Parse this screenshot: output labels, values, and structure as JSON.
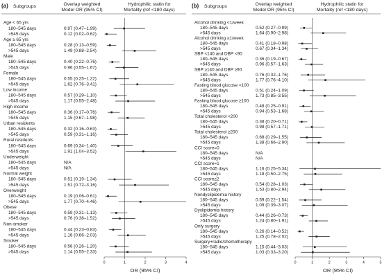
{
  "chart_data": [
    {
      "type": "forest",
      "panel": "(a)",
      "headers": {
        "subgroups": "Subgroups",
        "model": [
          "Overlap weighted",
          "Model OR (95% CI)"
        ],
        "plot": [
          "Hydrophilic statin for",
          "Mortality (ref <180 days)"
        ]
      },
      "xlabel": "OR (95% CI)",
      "xlim": [
        0,
        4
      ],
      "xticks": [
        0,
        1,
        2,
        3,
        4
      ],
      "ref_line": 1,
      "color": "#222222",
      "groups": [
        {
          "name": "Age < 65 yrs",
          "rows": [
            {
              "label": "180–545 days",
              "text": "0.97 (0.47–1.99)",
              "or": 0.97,
              "lo": 0.47,
              "hi": 1.99
            },
            {
              "label": ">545 days",
              "text": "0.12 (0.02–0.62)",
              "or": 0.12,
              "lo": 0.02,
              "hi": 0.62
            }
          ]
        },
        {
          "name": "Age ≥ 65 yrs",
          "rows": [
            {
              "label": "180–545 days",
              "text": "0.28 (0.13–0.59)",
              "or": 0.28,
              "lo": 0.13,
              "hi": 0.59
            },
            {
              "label": ">545 days",
              "text": "1.49 (0.88–2.54)",
              "or": 1.49,
              "lo": 0.88,
              "hi": 2.54
            }
          ]
        },
        {
          "name": "Male",
          "rows": [
            {
              "label": "180–545 days",
              "text": "0.40 (0.22–0.76)",
              "or": 0.4,
              "lo": 0.22,
              "hi": 0.76
            },
            {
              "label": ">545 days",
              "text": "0.96 (0.55–1.67)",
              "or": 0.96,
              "lo": 0.55,
              "hi": 1.67
            }
          ]
        },
        {
          "name": "Female",
          "rows": [
            {
              "label": "180–545 days",
              "text": "0.55 (0.25–1.22)",
              "or": 0.55,
              "lo": 0.25,
              "hi": 1.22
            },
            {
              "label": ">545 days",
              "text": "1.62 (0.76–3.41)",
              "or": 1.62,
              "lo": 0.76,
              "hi": 3.41
            }
          ]
        },
        {
          "name": "Low income",
          "rows": [
            {
              "label": "180–545 days",
              "text": "0.57 (0.29–1.10)",
              "or": 0.57,
              "lo": 0.29,
              "hi": 1.1
            },
            {
              "label": ">545 days",
              "text": "1.17 (0.55–2.48)",
              "or": 1.17,
              "lo": 0.55,
              "hi": 2.48
            }
          ]
        },
        {
          "name": "High income",
          "rows": [
            {
              "label": "180–545 days",
              "text": "0.36 (0.17–0.76)",
              "or": 0.36,
              "lo": 0.17,
              "hi": 0.76
            },
            {
              "label": ">545 days",
              "text": "1.15 (0.67–1.98)",
              "or": 1.15,
              "lo": 0.67,
              "hi": 1.98
            }
          ]
        },
        {
          "name": "Urban residents",
          "rows": [
            {
              "label": "180–545 days",
              "text": "0.32 (0.16–0.63)",
              "or": 0.32,
              "lo": 0.16,
              "hi": 0.63
            },
            {
              "label": ">545 days",
              "text": "0.59 (0.31–1.16)",
              "or": 0.59,
              "lo": 0.31,
              "hi": 1.16
            }
          ]
        },
        {
          "name": "Rural residents",
          "rows": [
            {
              "label": "180–545 days",
              "text": "0.69 (0.34–1.40)",
              "or": 0.69,
              "lo": 0.34,
              "hi": 1.4
            },
            {
              "label": ">545 days",
              "text": "1.91 (1.04–3.52)",
              "or": 1.91,
              "lo": 1.04,
              "hi": 3.52
            }
          ]
        },
        {
          "name": "Underweight",
          "rows": [
            {
              "label": "180–545 days",
              "text": "N/A",
              "or": null,
              "lo": null,
              "hi": null
            },
            {
              "label": ">545 days",
              "text": "N/A",
              "or": null,
              "lo": null,
              "hi": null
            }
          ]
        },
        {
          "name": "Normal weight",
          "rows": [
            {
              "label": "180–545 days",
              "text": "0.51 (0.19–1.34)",
              "or": 0.51,
              "lo": 0.19,
              "hi": 1.34
            },
            {
              "label": ">545 days",
              "text": "1.51 (0.72–3.16)",
              "or": 1.51,
              "lo": 0.72,
              "hi": 3.16
            }
          ]
        },
        {
          "name": "Overweight",
          "rows": [
            {
              "label": "180–545 days",
              "text": "0.19 (0.06–0.61)",
              "or": 0.19,
              "lo": 0.06,
              "hi": 0.61
            },
            {
              "label": ">545 days",
              "text": "1.77 (0.70–4.46)",
              "or": 1.77,
              "lo": 0.7,
              "hi": 4.46
            }
          ]
        },
        {
          "name": "Obese",
          "rows": [
            {
              "label": "180–545 days",
              "text": "0.59 (0.31–1.13)",
              "or": 0.59,
              "lo": 0.31,
              "hi": 1.13
            },
            {
              "label": ">545 days",
              "text": "0.76 (0.38–1.52)",
              "or": 0.76,
              "lo": 0.38,
              "hi": 1.52
            }
          ]
        },
        {
          "name": "Non-smoker",
          "rows": [
            {
              "label": "180–545 days",
              "text": "0.44 (0.23–0.83)",
              "or": 0.44,
              "lo": 0.23,
              "hi": 0.83
            },
            {
              "label": ">545 days",
              "text": "1.16 (0.66–2.03)",
              "or": 1.16,
              "lo": 0.66,
              "hi": 2.03
            }
          ]
        },
        {
          "name": "Smoker",
          "rows": [
            {
              "label": "180–545 days",
              "text": "0.56 (0.26–1.20)",
              "or": 0.56,
              "lo": 0.26,
              "hi": 1.2
            },
            {
              "label": ">545 days",
              "text": "1.14 (0.55–2.33)",
              "or": 1.14,
              "lo": 0.55,
              "hi": 2.33
            }
          ]
        }
      ]
    },
    {
      "type": "forest",
      "panel": "(b)",
      "headers": {
        "subgroups": "Subgroups",
        "model": [
          "Overlap weighted",
          "Model OR (95% CI)"
        ],
        "plot": [
          "Hydrophilic statin for",
          "Mortality (ref <180 days)"
        ]
      },
      "xlabel": "OR (95% CI)",
      "xlim": [
        0,
        5
      ],
      "xticks": [
        0,
        1,
        2,
        3,
        4,
        5
      ],
      "ref_line": 1,
      "color": "#222222",
      "groups": [
        {
          "name": "Alcohol drinking <1/week",
          "rows": [
            {
              "label": "180–545 days",
              "text": "0.52 (0.27–0.99)",
              "or": 0.52,
              "lo": 0.27,
              "hi": 0.99
            },
            {
              "label": ">545 days",
              "text": "1.64 (0.90–2.98)",
              "or": 1.64,
              "lo": 0.9,
              "hi": 2.98
            }
          ]
        },
        {
          "name": "Alcohol drinking ≥1/week",
          "rows": [
            {
              "label": "180–545 days",
              "text": "0.41 (0.18–0.98)",
              "or": 0.41,
              "lo": 0.18,
              "hi": 0.98
            },
            {
              "label": ">545 days",
              "text": "0.67 (0.34–1.34)",
              "or": 0.67,
              "lo": 0.34,
              "hi": 1.34
            }
          ]
        },
        {
          "name": "SBP <140 and DBP <90",
          "rows": [
            {
              "label": "180–545 days",
              "text": "0.36 (0.19–0.67)",
              "or": 0.36,
              "lo": 0.19,
              "hi": 0.67
            },
            {
              "label": ">545 days",
              "text": "0.96 (0.57–1.63)",
              "or": 0.96,
              "lo": 0.57,
              "hi": 1.63
            }
          ]
        },
        {
          "name": "SBP ≥140 and DBP ≥90",
          "rows": [
            {
              "label": "180–545 days",
              "text": "0.76 (0.32–1.76)",
              "or": 0.76,
              "lo": 0.32,
              "hi": 1.76
            },
            {
              "label": ">545 days",
              "text": "1.77 (0.76–4.10)",
              "or": 1.77,
              "lo": 0.76,
              "hi": 4.1
            }
          ]
        },
        {
          "name": "Fasting blood glucose <100",
          "rows": [
            {
              "label": "180–545 days",
              "text": "0.51 (0.24–1.09)",
              "or": 0.51,
              "lo": 0.24,
              "hi": 1.09
            },
            {
              "label": ">545 days",
              "text": "1.73 (0.85–3.55)",
              "or": 1.73,
              "lo": 0.85,
              "hi": 3.55
            }
          ]
        },
        {
          "name": "Fasting blood glucose ≥100",
          "rows": [
            {
              "label": "180–545 days",
              "text": "0.48 (0.25–0.91)",
              "or": 0.48,
              "lo": 0.25,
              "hi": 0.91
            },
            {
              "label": ">545 days",
              "text": "0.94 (0.53–1.68)",
              "or": 0.94,
              "lo": 0.53,
              "hi": 1.68
            }
          ]
        },
        {
          "name": "Total cholesterol <200",
          "rows": [
            {
              "label": "180–545 days",
              "text": "0.38 (0.20–0.71)",
              "or": 0.38,
              "lo": 0.2,
              "hi": 0.71
            },
            {
              "label": ">545 days",
              "text": "0.98 (0.57–1.71)",
              "or": 0.98,
              "lo": 0.57,
              "hi": 1.71
            }
          ]
        },
        {
          "name": "Total cholesterol ≥200",
          "rows": [
            {
              "label": "180–545 days",
              "text": "0.68 (0.29–1.55)",
              "or": 0.68,
              "lo": 0.29,
              "hi": 1.55
            },
            {
              "label": ">545 days",
              "text": "1.38 (0.66–2.90)",
              "or": 1.38,
              "lo": 0.66,
              "hi": 2.9
            }
          ]
        },
        {
          "name": "CCI score=0",
          "rows": [
            {
              "label": "180–545 days",
              "text": "N/A",
              "or": null,
              "lo": null,
              "hi": null
            },
            {
              "label": ">545 days",
              "text": "N/A",
              "or": null,
              "lo": null,
              "hi": null
            }
          ]
        },
        {
          "name": "CCI score=1",
          "rows": [
            {
              "label": "180–545 days",
              "text": "1.16 (0.25–5.34)",
              "or": 1.16,
              "lo": 0.25,
              "hi": 5.34
            },
            {
              "label": ">545 days",
              "text": "1.18 (0.50–2.75)",
              "or": 1.18,
              "lo": 0.5,
              "hi": 2.75
            }
          ]
        },
        {
          "name": "CCI score≥2",
          "rows": [
            {
              "label": "180–545 days",
              "text": "0.54 (0.28–1.03)",
              "or": 0.54,
              "lo": 0.28,
              "hi": 1.03
            },
            {
              "label": ">545 days",
              "text": "1.53 (0.80–2.94)",
              "or": 1.53,
              "lo": 0.8,
              "hi": 2.94
            }
          ]
        },
        {
          "name": "Nondyslipidemia history",
          "rows": [
            {
              "label": "180–545 days",
              "text": "0.59 (0.22–1.54)",
              "or": 0.59,
              "lo": 0.22,
              "hi": 1.54
            },
            {
              "label": ">545 days",
              "text": "1.09 (0.39–3.07)",
              "or": 1.09,
              "lo": 0.39,
              "hi": 3.07
            }
          ]
        },
        {
          "name": "Dyslipidemia history",
          "rows": [
            {
              "label": "180–545 days",
              "text": "0.44 (0.26–0.73)",
              "or": 0.44,
              "lo": 0.26,
              "hi": 0.73
            },
            {
              "label": ">545 days",
              "text": "1.24 (0.80–1.91)",
              "or": 1.24,
              "lo": 0.8,
              "hi": 1.91
            }
          ]
        },
        {
          "name": "Only surgery",
          "rows": [
            {
              "label": "180–545 days",
              "text": "0.26 (0.14–0.52)",
              "or": 0.26,
              "lo": 0.14,
              "hi": 0.52
            },
            {
              "label": ">545 days",
              "text": "1.25 (0.78–2.02)",
              "or": 1.25,
              "lo": 0.78,
              "hi": 2.02
            }
          ]
        },
        {
          "name": "Surgery+radio/chemotherapy",
          "rows": [
            {
              "label": "180–545 days",
              "text": "1.15 (0.44–3.03)",
              "or": 1.15,
              "lo": 0.44,
              "hi": 3.03
            },
            {
              "label": ">545 days",
              "text": "1.03 (0.33–3.20)",
              "or": 1.03,
              "lo": 0.33,
              "hi": 3.2
            }
          ]
        }
      ]
    }
  ]
}
